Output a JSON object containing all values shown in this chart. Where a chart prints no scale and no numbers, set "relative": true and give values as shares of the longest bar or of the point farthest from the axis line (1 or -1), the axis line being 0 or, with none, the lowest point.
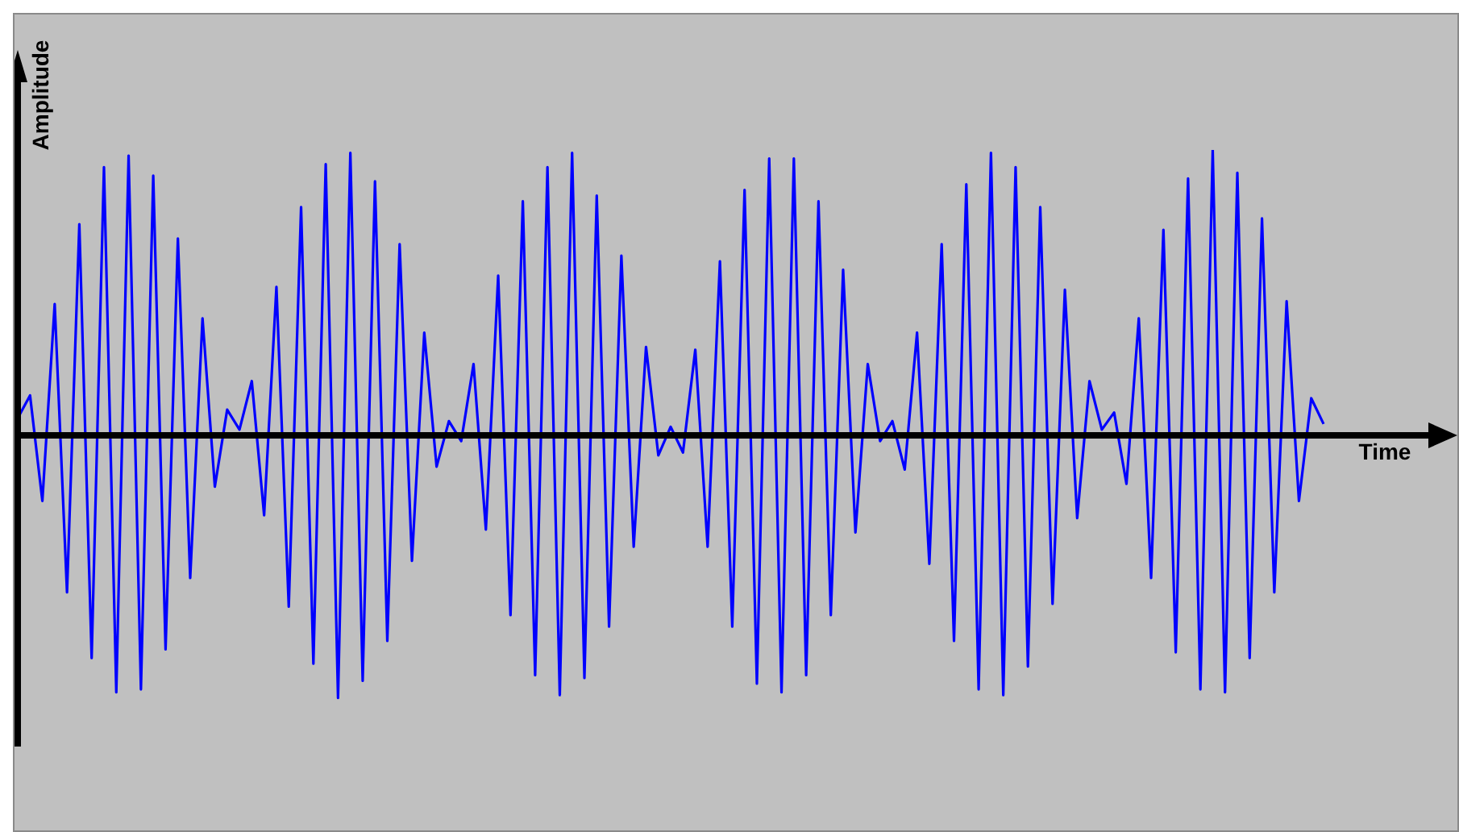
{
  "chart_data": {
    "type": "line",
    "xlabel": "Time",
    "ylabel": "Amplitude",
    "relative": true,
    "categories": [
      null,
      null,
      null,
      null,
      null,
      null,
      null,
      null,
      null,
      null,
      null,
      null,
      null,
      null,
      null,
      null,
      null,
      null,
      null,
      null,
      null,
      null,
      null,
      null,
      null,
      null,
      null,
      null,
      null,
      null,
      null,
      null,
      null,
      null,
      null,
      null,
      null,
      null,
      null,
      null,
      null,
      null,
      null,
      null,
      null,
      null,
      null,
      null,
      null,
      null,
      null,
      null,
      null,
      null,
      null,
      null,
      null,
      null,
      null,
      null,
      null,
      null,
      null,
      null,
      null,
      null,
      null,
      null,
      null,
      null,
      null,
      null,
      null,
      null,
      null,
      null,
      null,
      null,
      null,
      null,
      null,
      null,
      null,
      null,
      null,
      null,
      null,
      null,
      null,
      null,
      null,
      null,
      null,
      null,
      null,
      null,
      null,
      null,
      null,
      null,
      null,
      null,
      null,
      null,
      null,
      null,
      null
    ],
    "series": [
      {
        "color": "#0000ff",
        "values": [
          0.06,
          0.14,
          -0.23,
          0.46,
          -0.55,
          0.74,
          -0.78,
          0.94,
          -0.9,
          0.98,
          -0.89,
          0.91,
          -0.75,
          0.69,
          -0.5,
          0.41,
          -0.18,
          0.09,
          0.02,
          0.19,
          -0.28,
          0.52,
          -0.6,
          0.8,
          -0.8,
          0.95,
          -0.92,
          0.99,
          -0.86,
          0.89,
          -0.72,
          0.67,
          -0.44,
          0.36,
          -0.11,
          0.05,
          -0.02,
          0.25,
          -0.33,
          0.56,
          -0.63,
          0.82,
          -0.84,
          0.94,
          -0.91,
          0.99,
          -0.85,
          0.84,
          -0.67,
          0.63,
          -0.39,
          0.31,
          -0.07,
          0.03,
          -0.06,
          0.3,
          -0.39,
          0.61,
          -0.67,
          0.86,
          -0.87,
          0.97,
          -0.9,
          0.97,
          -0.84,
          0.82,
          -0.63,
          0.58,
          -0.34,
          0.25,
          -0.02,
          0.05,
          -0.12,
          0.36,
          -0.45,
          0.67,
          -0.72,
          0.88,
          -0.89,
          0.99,
          -0.91,
          0.94,
          -0.81,
          0.8,
          -0.59,
          0.51,
          -0.29,
          0.19,
          0.02,
          0.08,
          -0.17,
          0.41,
          -0.5,
          0.72,
          -0.76,
          0.9,
          -0.89,
          1,
          -0.9,
          0.92,
          -0.78,
          0.76,
          -0.55,
          0.47,
          -0.23,
          0.13,
          0.04
        ]
      }
    ]
  }
}
